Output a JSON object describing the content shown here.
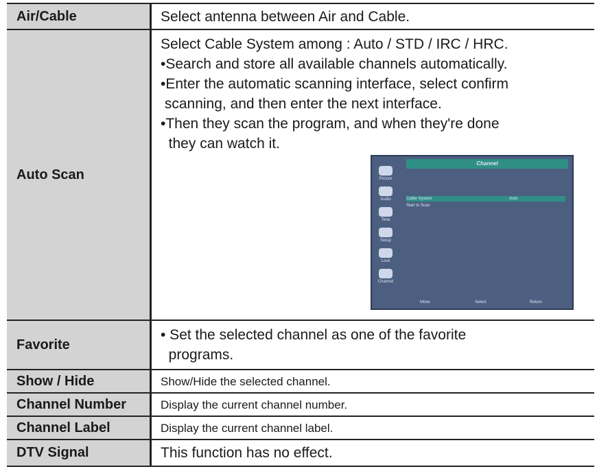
{
  "table": {
    "rows": [
      {
        "label": "Air/Cable",
        "lines": [
          "Select antenna between Air and Cable."
        ]
      },
      {
        "label": "Auto Scan",
        "lines": [
          "Select Cable System among : Auto / STD / IRC / HRC.",
          "•Search and store all available channels automatically.",
          "•Enter the automatic scanning interface, select confirm",
          " scanning, and then enter the next interface.",
          "•Then they scan the program, and when they're done",
          "  they can watch it."
        ]
      },
      {
        "label": "Favorite",
        "lines": [
          "• Set the selected channel as one of the favorite",
          "  programs."
        ]
      },
      {
        "label": "Show / Hide",
        "lines": [
          "Show/Hide the selected channel."
        ]
      },
      {
        "label": "Channel Number",
        "lines": [
          "Display the current channel number."
        ]
      },
      {
        "label": "Channel Label",
        "lines": [
          "Display the current channel label."
        ]
      },
      {
        "label": "DTV Signal",
        "lines": [
          "This function has no effect."
        ]
      }
    ]
  },
  "menu": {
    "title": "Channel",
    "sidebar": [
      "Picture",
      "Audio",
      "Time",
      "Setup",
      "Lock",
      "Channel"
    ],
    "items": [
      {
        "label": "Cable System",
        "value": "Auto"
      },
      {
        "label": "Start to Scan"
      }
    ],
    "footer": [
      "Move",
      "Select",
      "Return"
    ]
  }
}
